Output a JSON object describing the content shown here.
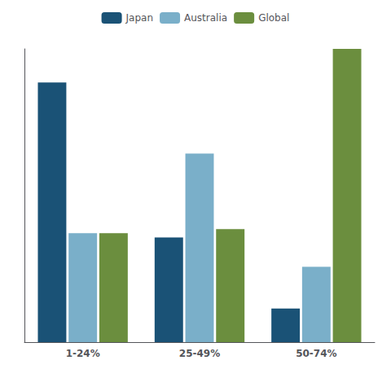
{
  "chart_data": {
    "type": "bar",
    "categories": [
      "1-24%",
      "25-49%",
      "50-74%"
    ],
    "series": [
      {
        "name": "Japan",
        "values": [
          62,
          25,
          8
        ],
        "color": "#1a5276"
      },
      {
        "name": "Australia",
        "values": [
          26,
          45,
          18
        ],
        "color": "#7aafc9"
      },
      {
        "name": "Global",
        "values": [
          26,
          27,
          70
        ],
        "color": "#6b8e3e"
      }
    ],
    "ylim": [
      0,
      70
    ],
    "grid": false,
    "legend": "top",
    "tick_labels": "x"
  }
}
